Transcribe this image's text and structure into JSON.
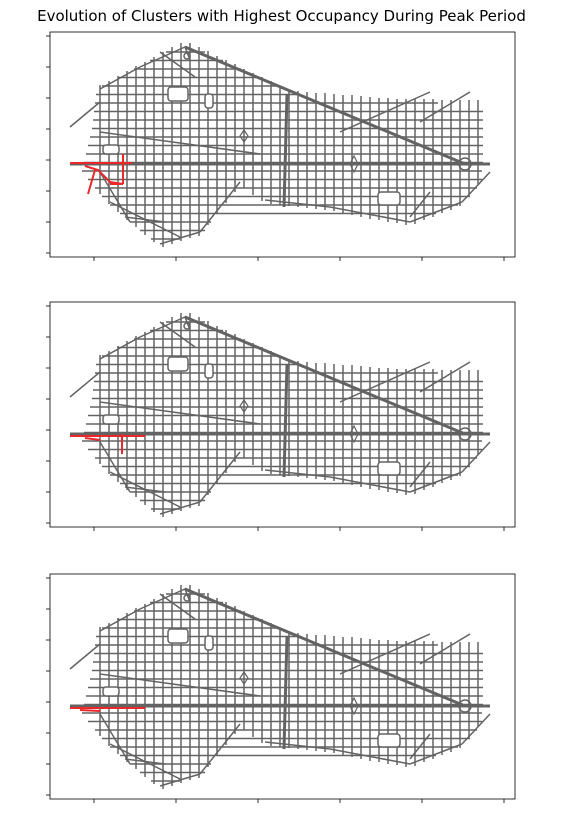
{
  "title": "Evolution of Clusters with Highest Occupancy During Peak Period",
  "colors": {
    "network": "#636363",
    "highlight": "#e8282b",
    "axes": "#000000",
    "background": "#ffffff"
  },
  "chart_data": {
    "type": "map",
    "title": "Evolution of Clusters with Highest Occupancy During Peak Period",
    "panels": [
      {
        "highlighted_cluster": "left edge near main horizontal avenue, with vertical and diagonal branches",
        "highlight_extent": "large"
      },
      {
        "highlighted_cluster": "left edge along main horizontal avenue, with short vertical branch",
        "highlight_extent": "medium"
      },
      {
        "highlighted_cluster": "left edge along main horizontal avenue only",
        "highlight_extent": "small"
      }
    ],
    "grid": false,
    "tick_labels": "none",
    "xlabel": "",
    "ylabel": ""
  }
}
